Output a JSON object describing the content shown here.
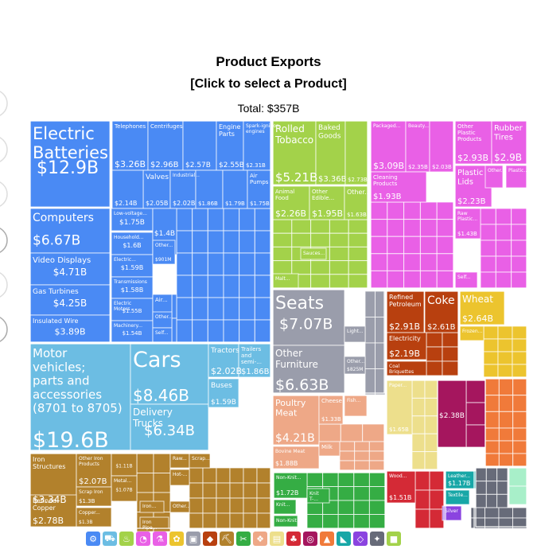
{
  "header": {
    "title": "Product Exports",
    "subtitle": "[Click to select a Product]",
    "total": "Total: $357B"
  },
  "chart_data": {
    "type": "treemap",
    "total": "$357B",
    "cells": [
      {
        "label": "Electric Batteries",
        "value": "$12.9B",
        "color": "#4a8af4"
      },
      {
        "label": "Telephones",
        "value": "$3.26B",
        "color": "#4a8af4"
      },
      {
        "label": "Centrifuges",
        "value": "$2.96B",
        "color": "#4a8af4"
      },
      {
        "label": "",
        "value": "$2.57B",
        "color": "#4a8af4"
      },
      {
        "label": "Engine Parts",
        "value": "$2.55B",
        "color": "#4a8af4"
      },
      {
        "label": "Spark-ignition engines",
        "value": "$2.31B",
        "color": "#4a8af4"
      },
      {
        "label": "Valves",
        "value": "$2.05B",
        "color": "#4a8af4"
      },
      {
        "label": "",
        "value": "$2.14B",
        "color": "#4a8af4"
      },
      {
        "label": "Industrial...",
        "value": "$2.02B",
        "color": "#4a8af4"
      },
      {
        "label": "",
        "value": "$1.86B",
        "color": "#4a8af4"
      },
      {
        "label": "",
        "value": "$1.79B",
        "color": "#4a8af4"
      },
      {
        "label": "Air Pumps",
        "value": "$1.75B",
        "color": "#4a8af4"
      },
      {
        "label": "Computers",
        "value": "$6.67B",
        "color": "#4a8af4"
      },
      {
        "label": "Video Displays",
        "value": "$4.71B",
        "color": "#4a8af4"
      },
      {
        "label": "Gas Turbines",
        "value": "$4.25B",
        "color": "#4a8af4"
      },
      {
        "label": "Insulated Wire",
        "value": "$3.89B",
        "color": "#4a8af4"
      },
      {
        "label": "Low-voltage...",
        "value": "$1.75B",
        "color": "#4a8af4"
      },
      {
        "label": "Household...",
        "value": "$1.6B",
        "color": "#4a8af4"
      },
      {
        "label": "",
        "value": "$1.4B",
        "color": "#4a8af4"
      },
      {
        "label": "Electric...",
        "value": "$1.59B",
        "color": "#4a8af4"
      },
      {
        "label": "Other...",
        "value": "$901M",
        "color": "#4a8af4"
      },
      {
        "label": "Transmissions",
        "value": "$1.58B",
        "color": "#4a8af4"
      },
      {
        "label": "Electric Motors",
        "value": "$1.55B",
        "color": "#4a8af4"
      },
      {
        "label": "Machinery...",
        "value": "$1.54B",
        "color": "#4a8af4"
      },
      {
        "label": "Air...",
        "value": "",
        "color": "#4a8af4"
      },
      {
        "label": "Other...",
        "value": "",
        "color": "#4a8af4"
      },
      {
        "label": "Self...",
        "value": "",
        "color": "#4a8af4"
      },
      {
        "label": "Motor vehicles; parts and accessories (8701 to 8705)",
        "value": "$19.6B",
        "color": "#6cbde3"
      },
      {
        "label": "Cars",
        "value": "$8.46B",
        "color": "#6cbde3"
      },
      {
        "label": "Delivery Trucks",
        "value": "$6.34B",
        "color": "#6cbde3"
      },
      {
        "label": "Tractors",
        "value": "$2.02B",
        "color": "#6cbde3"
      },
      {
        "label": "Trailers and semi-...",
        "value": "$1.86B",
        "color": "#6cbde3"
      },
      {
        "label": "Buses",
        "value": "$1.59B",
        "color": "#6cbde3"
      },
      {
        "label": "Rolled Tobacco",
        "value": "$5.21B",
        "color": "#a3d24a"
      },
      {
        "label": "Baked Goods",
        "value": "$3.36B",
        "color": "#a3d24a"
      },
      {
        "label": "",
        "value": "$2.73B",
        "color": "#a3d24a"
      },
      {
        "label": "Animal Food",
        "value": "$2.26B",
        "color": "#a3d24a"
      },
      {
        "label": "Other Edible...",
        "value": "$1.95B",
        "color": "#a3d24a"
      },
      {
        "label": "Other...",
        "value": "$1.63B",
        "color": "#a3d24a"
      },
      {
        "label": "Sauces...",
        "value": "",
        "color": "#a3d24a"
      },
      {
        "label": "Malt...",
        "value": "",
        "color": "#a3d24a"
      },
      {
        "label": "Packaged...",
        "value": "$3.09B",
        "color": "#e960e6"
      },
      {
        "label": "Beauty...",
        "value": "$2.35B",
        "color": "#e960e6"
      },
      {
        "label": "",
        "value": "$2.03B",
        "color": "#e960e6"
      },
      {
        "label": "Cleaning Products",
        "value": "$1.93B",
        "color": "#e960e6"
      },
      {
        "label": "Other Plastic Products",
        "value": "$2.93B",
        "color": "#e960e6"
      },
      {
        "label": "Rubber Tires",
        "value": "$2.9B",
        "color": "#e960e6"
      },
      {
        "label": "Plastic Lids",
        "value": "$2.23B",
        "color": "#e960e6"
      },
      {
        "label": "Other...",
        "value": "",
        "color": "#e960e6"
      },
      {
        "label": "Plastic...",
        "value": "",
        "color": "#e960e6"
      },
      {
        "label": "Raw Plastic...",
        "value": "$1.43B",
        "color": "#e960e6"
      },
      {
        "label": "Self...",
        "value": "",
        "color": "#e960e6"
      },
      {
        "label": "Seats",
        "value": "$7.07B",
        "color": "#9a9dab"
      },
      {
        "label": "Other Furniture",
        "value": "$6.63B",
        "color": "#9a9dab"
      },
      {
        "label": "Light...",
        "value": "",
        "color": "#9a9dab"
      },
      {
        "label": "Other...",
        "value": "$825M",
        "color": "#9a9dab"
      },
      {
        "label": "Refined Petroleum",
        "value": "$2.91B",
        "color": "#b8400f"
      },
      {
        "label": "Coke",
        "value": "$2.61B",
        "color": "#b8400f"
      },
      {
        "label": "Electricity",
        "value": "$2.19B",
        "color": "#b8400f"
      },
      {
        "label": "Coal Briquettes",
        "value": "",
        "color": "#b8400f"
      },
      {
        "label": "Wheat",
        "value": "$2.64B",
        "color": "#ecc42e"
      },
      {
        "label": "Frozen...",
        "value": "",
        "color": "#ecc42e"
      },
      {
        "label": "Poultry Meat",
        "value": "$4.21B",
        "color": "#eea887"
      },
      {
        "label": "Cheese",
        "value": "$1.33B",
        "color": "#eea887"
      },
      {
        "label": "Fish...",
        "value": "",
        "color": "#eea887"
      },
      {
        "label": "Bovine Meat",
        "value": "$1.88B",
        "color": "#eea887"
      },
      {
        "label": "Milk",
        "value": "",
        "color": "#eea887"
      },
      {
        "label": "Paper...",
        "value": "$1.65B",
        "color": "#eddf8c"
      },
      {
        "label": "",
        "value": "$2.38B",
        "color": "#a5165e"
      },
      {
        "label": "Iron Structures",
        "value": "$3.34B",
        "color": "#b2812c"
      },
      {
        "label": "Other Iron Products",
        "value": "$2.07B",
        "color": "#b2812c"
      },
      {
        "label": "",
        "value": "$1.11B",
        "color": "#b2812c"
      },
      {
        "label": "Metal...",
        "value": "$1.07B",
        "color": "#b2812c"
      },
      {
        "label": "Scrap Iron",
        "value": "$1.3B",
        "color": "#b2812c"
      },
      {
        "label": "Refined Copper",
        "value": "$2.78B",
        "color": "#b2812c"
      },
      {
        "label": "Copper...",
        "value": "$1.3B",
        "color": "#b2812c"
      },
      {
        "label": "Raw...",
        "value": "",
        "color": "#b2812c"
      },
      {
        "label": "Scrap...",
        "value": "",
        "color": "#b2812c"
      },
      {
        "label": "Hot-...",
        "value": "",
        "color": "#b2812c"
      },
      {
        "label": "Other...",
        "value": "",
        "color": "#b2812c"
      },
      {
        "label": "Iron...",
        "value": "",
        "color": "#b2812c"
      },
      {
        "label": "Iron Pipe...",
        "value": "",
        "color": "#b2812c"
      },
      {
        "label": "Non-Knit...",
        "value": "$1.72B",
        "color": "#35ad44"
      },
      {
        "label": "Knit T-...",
        "value": "",
        "color": "#35ad44"
      },
      {
        "label": "Knit...",
        "value": "",
        "color": "#35ad44"
      },
      {
        "label": "Non-Knit...",
        "value": "",
        "color": "#35ad44"
      },
      {
        "label": "Wood...",
        "value": "$1.51B",
        "color": "#d42a36"
      },
      {
        "label": "Leather...",
        "value": "$1.17B",
        "color": "#18a7a7"
      },
      {
        "label": "Textile...",
        "value": "",
        "color": "#18a7a7"
      },
      {
        "label": "Silver",
        "value": "",
        "color": "#8b44e0"
      }
    ]
  },
  "category_icons": [
    {
      "name": "machines-icon",
      "glyph": "⚙",
      "color": "#4a8af4"
    },
    {
      "name": "transportation-icon",
      "glyph": "⛟",
      "color": "#6cbde3"
    },
    {
      "name": "foodstuffs-icon",
      "glyph": "♨",
      "color": "#a3d24a"
    },
    {
      "name": "plastics-icon",
      "glyph": "◔",
      "color": "#e960e6"
    },
    {
      "name": "chemicals-icon",
      "glyph": "⚗",
      "color": "#e960e6"
    },
    {
      "name": "vegetable-products-icon",
      "glyph": "✿",
      "color": "#ecc42e"
    },
    {
      "name": "furniture-icon",
      "glyph": "▣",
      "color": "#9a9dab"
    },
    {
      "name": "minerals-icon",
      "glyph": "◆",
      "color": "#b8400f"
    },
    {
      "name": "metals-icon",
      "glyph": "⛏",
      "color": "#b2812c"
    },
    {
      "name": "textiles-icon",
      "glyph": "✂",
      "color": "#35ad44"
    },
    {
      "name": "animal-products-icon",
      "glyph": "❖",
      "color": "#eea887"
    },
    {
      "name": "paper-icon",
      "glyph": "▤",
      "color": "#eddf8c"
    },
    {
      "name": "wood-icon",
      "glyph": "♣",
      "color": "#d42a36"
    },
    {
      "name": "instruments-icon",
      "glyph": "◎",
      "color": "#a5165e"
    },
    {
      "name": "stone-icon",
      "glyph": "▲",
      "color": "#f07a3a"
    },
    {
      "name": "footwear-icon",
      "glyph": "◣",
      "color": "#18a7a7"
    },
    {
      "name": "precious-metals-icon",
      "glyph": "◇",
      "color": "#8b44e0"
    },
    {
      "name": "arms-icon",
      "glyph": "✦",
      "color": "#676b79"
    },
    {
      "name": "miscellaneous-icon",
      "glyph": "■",
      "color": "#a3d24a"
    }
  ]
}
